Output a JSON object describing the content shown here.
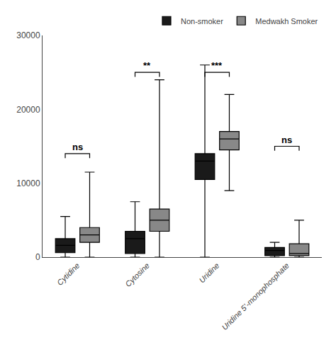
{
  "chart_data": {
    "type": "box",
    "categories": [
      "Cytidine",
      "Cytosine",
      "Uridine",
      "Uridine 5’-monophosphate"
    ],
    "series": [
      {
        "name": "Non-smoker",
        "color": "#1a1a1a",
        "values": [
          {
            "min": 0,
            "q1": 600,
            "median": 1600,
            "q3": 2500,
            "max": 5500
          },
          {
            "min": 0,
            "q1": 500,
            "median": 2500,
            "q3": 3500,
            "max": 7500
          },
          {
            "min": 0,
            "q1": 10500,
            "median": 13000,
            "q3": 14000,
            "max": 26000
          },
          {
            "min": 0,
            "q1": 200,
            "median": 900,
            "q3": 1300,
            "max": 2000
          }
        ]
      },
      {
        "name": "Medwakh Smoker",
        "color": "#888888",
        "values": [
          {
            "min": 0,
            "q1": 2000,
            "median": 3000,
            "q3": 4000,
            "max": 11500
          },
          {
            "min": 0,
            "q1": 3500,
            "median": 5000,
            "q3": 6500,
            "max": 24000
          },
          {
            "min": 9000,
            "q1": 14500,
            "median": 16000,
            "q3": 17000,
            "max": 22000
          },
          {
            "min": 0,
            "q1": 200,
            "median": 500,
            "q3": 1800,
            "max": 5000
          }
        ]
      }
    ],
    "annotations": [
      {
        "x": "Cytidine",
        "y": 14000,
        "text": "ns"
      },
      {
        "x": "Cytosine",
        "y": 25000,
        "text": "**"
      },
      {
        "x": "Uridine",
        "y": 25000,
        "text": "***"
      },
      {
        "x": "Uridine 5’-monophosphate",
        "y": 15000,
        "text": "ns"
      }
    ],
    "ylim": [
      0,
      30000
    ],
    "yticks": [
      0,
      10000,
      20000,
      30000
    ],
    "grid": false,
    "legend": "upper right"
  }
}
